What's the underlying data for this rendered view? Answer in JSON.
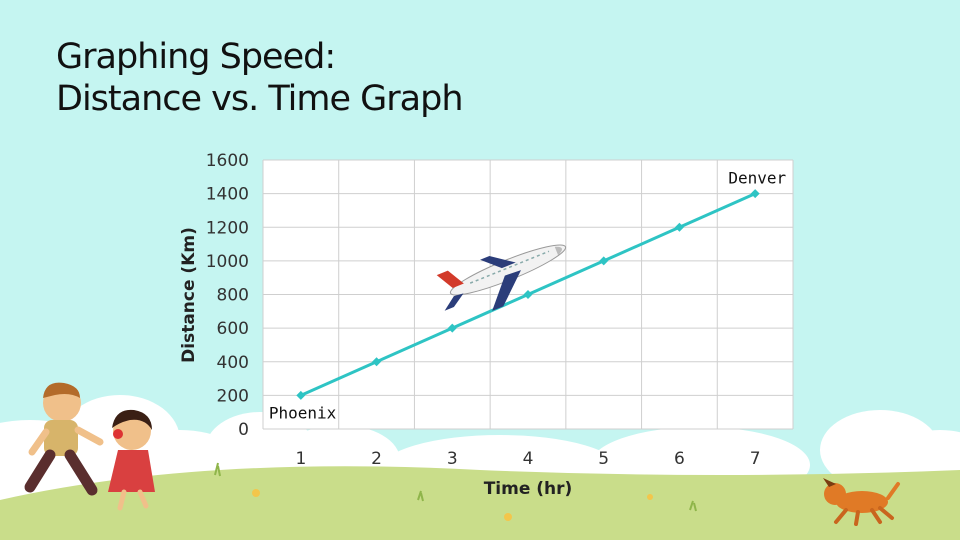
{
  "slide": {
    "title_line1": "Graphing Speed:",
    "title_line2": "Distance vs. Time Graph"
  },
  "colors": {
    "background": "#c5f5f1",
    "line": "#2ec4c4",
    "grid": "#cfcfcf",
    "grass": "#c9dd8a",
    "cloud": "#ffffff"
  },
  "chart_data": {
    "type": "line",
    "x": [
      1,
      2,
      3,
      4,
      5,
      6,
      7
    ],
    "series": [
      {
        "values": [
          200,
          400,
          600,
          800,
          1000,
          1200,
          1400
        ]
      }
    ],
    "xlabel": "Time (hr)",
    "ylabel": "Distance (Km)",
    "x_ticks": [
      "1",
      "2",
      "3",
      "4",
      "5",
      "6",
      "7"
    ],
    "y_ticks": [
      "0",
      "200",
      "400",
      "600",
      "800",
      "1000",
      "1200",
      "1400",
      "1600"
    ],
    "xlim": [
      0.5,
      7.5
    ],
    "ylim": [
      0,
      1600
    ],
    "grid": true,
    "annotations": [
      {
        "text": "Phoenix",
        "x": 1,
        "y": 200
      },
      {
        "text": "Denver",
        "x": 7,
        "y": 1400
      }
    ]
  },
  "decor": {
    "icons": [
      "airplane-icon",
      "boy-running-icon",
      "girl-running-icon",
      "dog-running-icon",
      "cloud-icon",
      "grass-icon"
    ]
  }
}
